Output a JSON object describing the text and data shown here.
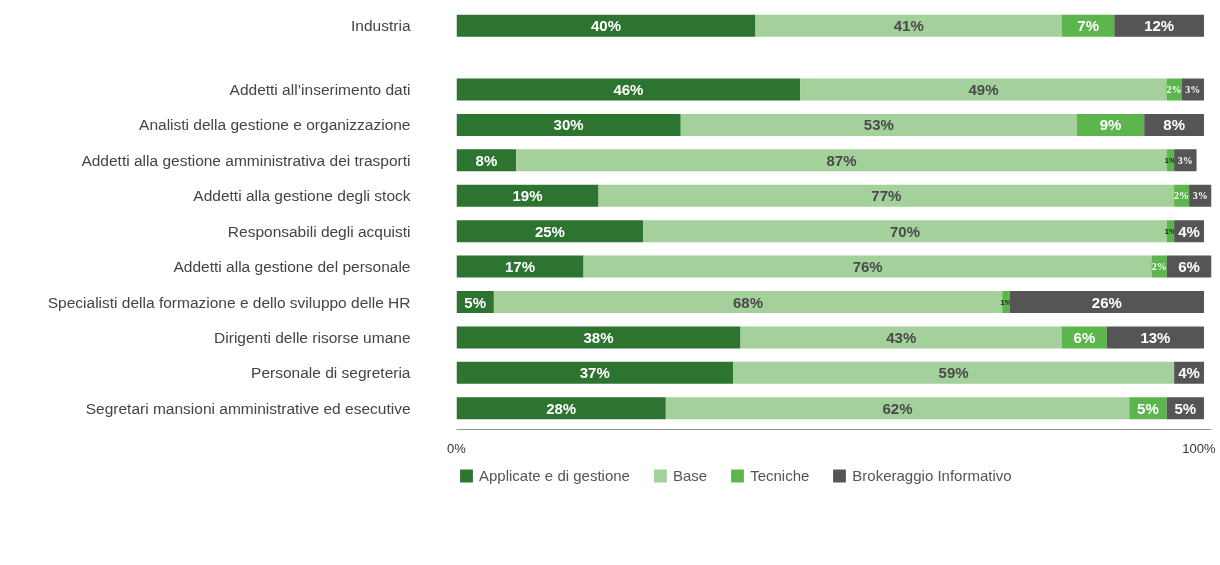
{
  "chart_data": {
    "type": "bar",
    "orientation": "horizontal",
    "stacked": true,
    "categories": [
      "Industria",
      "Addetti all’inserimento dati",
      "Analisti della gestione e organizzazione",
      "Addetti alla gestione amministrativa dei trasporti",
      "Addetti alla gestione degli stock",
      "Responsabili degli acquisti",
      "Addetti alla gestione del personale",
      "Specialisti della formazione e dello sviluppo delle HR",
      "Dirigenti delle risorse umane",
      "Personale di segreteria",
      "Segretari mansioni amministrative ed esecutive"
    ],
    "series": [
      {
        "name": "Applicate e di gestione",
        "color": "#2d7431",
        "values": [
          40,
          46,
          30,
          8,
          19,
          25,
          17,
          5,
          38,
          37,
          28
        ],
        "value_labels": [
          "40%",
          "46%",
          "30%",
          "8%",
          "19%",
          "25%",
          "17%",
          "5%",
          "38%",
          "37%",
          "28%"
        ]
      },
      {
        "name": "Base",
        "color": "#a3d09b",
        "values": [
          41,
          49,
          53,
          87,
          77,
          70,
          76,
          68,
          43,
          59,
          62
        ],
        "value_labels": [
          "41%",
          "49%",
          "53%",
          "87%",
          "77%",
          "70%",
          "76%",
          "68%",
          "43%",
          "59%",
          "62%"
        ]
      },
      {
        "name": "Tecniche",
        "color": "#5db54e",
        "values": [
          7,
          2,
          9,
          1,
          2,
          1,
          2,
          1,
          6,
          0,
          5
        ],
        "value_labels": [
          "7%",
          "2%",
          "9%",
          "1%",
          "2%",
          "1%",
          "2%",
          "1%",
          "6%",
          null,
          "5%"
        ]
      },
      {
        "name": "Brokeraggio Informativo",
        "color": "#555555",
        "values": [
          12,
          3,
          8,
          3,
          3,
          4,
          6,
          26,
          13,
          4,
          5
        ],
        "value_labels": [
          "12%",
          "3%",
          "8%",
          "3%",
          "3%",
          "4%",
          "6%",
          "26%",
          "13%",
          "4%",
          "5%"
        ]
      }
    ],
    "xlim": [
      0,
      101
    ],
    "xticks": [
      {
        "value": 0,
        "label": "0%"
      },
      {
        "value": 100,
        "label": "100%"
      }
    ],
    "grid": false,
    "legend": "bottom"
  }
}
